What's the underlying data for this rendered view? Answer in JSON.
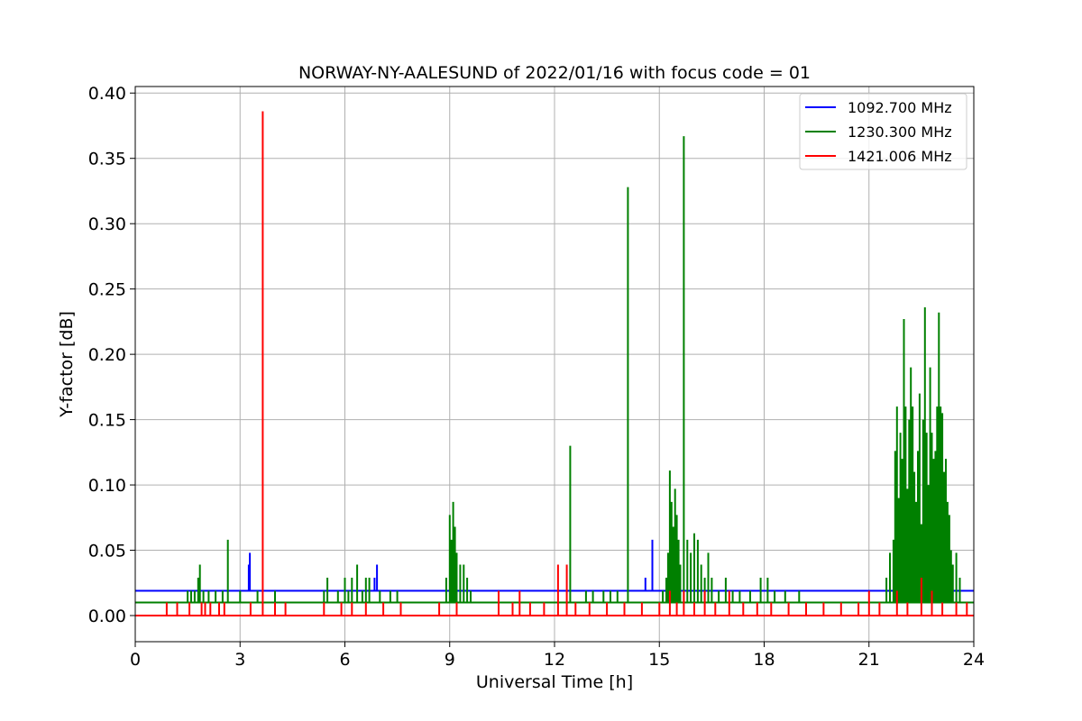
{
  "chart_data": {
    "type": "line",
    "title": "NORWAY-NY-AALESUND of 2022/01/16 with focus code = 01",
    "xlabel": "Universal Time [h]",
    "ylabel": "Y-factor [dB]",
    "xlim": [
      0,
      24
    ],
    "ylim": [
      -0.02,
      0.405
    ],
    "xticks": [
      0,
      3,
      6,
      9,
      12,
      15,
      18,
      21,
      24
    ],
    "xtick_labels": [
      "0",
      "3",
      "6",
      "9",
      "12",
      "15",
      "18",
      "21",
      "24"
    ],
    "yticks": [
      0.0,
      0.05,
      0.1,
      0.15,
      0.2,
      0.25,
      0.3,
      0.35,
      0.4
    ],
    "ytick_labels": [
      "0.00",
      "0.05",
      "0.10",
      "0.15",
      "0.20",
      "0.25",
      "0.30",
      "0.35",
      "0.40"
    ],
    "grid": true,
    "legend_position": "top-right",
    "series": [
      {
        "name": "1092.700 MHz",
        "color": "#0000ff",
        "baseline": 0.019,
        "spikes": [
          [
            3.25,
            0.039
          ],
          [
            3.28,
            0.048
          ],
          [
            6.85,
            0.029
          ],
          [
            6.92,
            0.039
          ],
          [
            12.0,
            0.019
          ],
          [
            14.6,
            0.029
          ],
          [
            14.8,
            0.058
          ]
        ]
      },
      {
        "name": "1230.300 MHz",
        "color": "#008000",
        "baseline": 0.01,
        "spikes": [
          [
            1.5,
            0.019
          ],
          [
            1.6,
            0.019
          ],
          [
            1.7,
            0.019
          ],
          [
            1.8,
            0.029
          ],
          [
            1.85,
            0.039
          ],
          [
            1.95,
            0.019
          ],
          [
            2.1,
            0.019
          ],
          [
            2.3,
            0.019
          ],
          [
            2.5,
            0.019
          ],
          [
            2.65,
            0.058
          ],
          [
            3.0,
            0.019
          ],
          [
            3.5,
            0.019
          ],
          [
            4.0,
            0.019
          ],
          [
            5.4,
            0.019
          ],
          [
            5.5,
            0.029
          ],
          [
            5.8,
            0.019
          ],
          [
            6.0,
            0.029
          ],
          [
            6.1,
            0.019
          ],
          [
            6.2,
            0.029
          ],
          [
            6.35,
            0.039
          ],
          [
            6.5,
            0.019
          ],
          [
            6.6,
            0.029
          ],
          [
            6.7,
            0.029
          ],
          [
            7.0,
            0.019
          ],
          [
            7.3,
            0.019
          ],
          [
            7.5,
            0.019
          ],
          [
            8.9,
            0.029
          ],
          [
            9.0,
            0.077
          ],
          [
            9.05,
            0.058
          ],
          [
            9.1,
            0.087
          ],
          [
            9.15,
            0.068
          ],
          [
            9.2,
            0.048
          ],
          [
            9.3,
            0.039
          ],
          [
            9.4,
            0.039
          ],
          [
            9.5,
            0.029
          ],
          [
            9.6,
            0.019
          ],
          [
            12.45,
            0.13
          ],
          [
            12.9,
            0.019
          ],
          [
            13.1,
            0.019
          ],
          [
            13.4,
            0.019
          ],
          [
            13.6,
            0.019
          ],
          [
            13.8,
            0.019
          ],
          [
            14.1,
            0.328
          ],
          [
            15.1,
            0.019
          ],
          [
            15.2,
            0.029
          ],
          [
            15.25,
            0.048
          ],
          [
            15.3,
            0.111
          ],
          [
            15.35,
            0.087
          ],
          [
            15.4,
            0.068
          ],
          [
            15.45,
            0.097
          ],
          [
            15.5,
            0.077
          ],
          [
            15.55,
            0.058
          ],
          [
            15.6,
            0.039
          ],
          [
            15.7,
            0.367
          ],
          [
            15.8,
            0.058
          ],
          [
            15.9,
            0.048
          ],
          [
            16.0,
            0.063
          ],
          [
            16.1,
            0.058
          ],
          [
            16.2,
            0.039
          ],
          [
            16.3,
            0.029
          ],
          [
            16.4,
            0.048
          ],
          [
            16.5,
            0.029
          ],
          [
            16.7,
            0.019
          ],
          [
            16.9,
            0.029
          ],
          [
            17.1,
            0.019
          ],
          [
            17.3,
            0.019
          ],
          [
            17.6,
            0.019
          ],
          [
            17.9,
            0.029
          ],
          [
            18.1,
            0.029
          ],
          [
            18.3,
            0.019
          ],
          [
            18.6,
            0.019
          ],
          [
            19.0,
            0.019
          ],
          [
            21.5,
            0.029
          ],
          [
            21.6,
            0.048
          ],
          [
            21.7,
            0.058
          ],
          [
            21.75,
            0.126
          ],
          [
            21.8,
            0.16
          ],
          [
            21.85,
            0.09
          ],
          [
            21.9,
            0.14
          ],
          [
            21.95,
            0.12
          ],
          [
            22.0,
            0.227
          ],
          [
            22.05,
            0.16
          ],
          [
            22.1,
            0.097
          ],
          [
            22.15,
            0.15
          ],
          [
            22.2,
            0.19
          ],
          [
            22.25,
            0.16
          ],
          [
            22.3,
            0.11
          ],
          [
            22.35,
            0.087
          ],
          [
            22.4,
            0.126
          ],
          [
            22.45,
            0.17
          ],
          [
            22.5,
            0.07
          ],
          [
            22.55,
            0.15
          ],
          [
            22.6,
            0.236
          ],
          [
            22.65,
            0.14
          ],
          [
            22.7,
            0.1
          ],
          [
            22.75,
            0.19
          ],
          [
            22.8,
            0.14
          ],
          [
            22.85,
            0.12
          ],
          [
            22.9,
            0.126
          ],
          [
            22.95,
            0.16
          ],
          [
            23.0,
            0.232
          ],
          [
            23.05,
            0.16
          ],
          [
            23.1,
            0.155
          ],
          [
            23.15,
            0.11
          ],
          [
            23.2,
            0.12
          ],
          [
            23.25,
            0.087
          ],
          [
            23.3,
            0.077
          ],
          [
            23.35,
            0.05
          ],
          [
            23.4,
            0.039
          ],
          [
            23.5,
            0.048
          ],
          [
            23.6,
            0.029
          ]
        ]
      },
      {
        "name": "1421.006 MHz",
        "color": "#ff0000",
        "baseline": 0.0,
        "spikes": [
          [
            0.9,
            0.01
          ],
          [
            1.2,
            0.01
          ],
          [
            1.55,
            0.01
          ],
          [
            1.9,
            0.01
          ],
          [
            2.0,
            0.01
          ],
          [
            2.15,
            0.01
          ],
          [
            2.4,
            0.01
          ],
          [
            2.55,
            0.01
          ],
          [
            3.3,
            0.01
          ],
          [
            3.65,
            0.386
          ],
          [
            4.0,
            0.01
          ],
          [
            4.3,
            0.01
          ],
          [
            5.4,
            0.01
          ],
          [
            5.9,
            0.01
          ],
          [
            6.2,
            0.01
          ],
          [
            6.6,
            0.01
          ],
          [
            7.1,
            0.01
          ],
          [
            7.6,
            0.01
          ],
          [
            8.7,
            0.01
          ],
          [
            9.2,
            0.01
          ],
          [
            10.4,
            0.019
          ],
          [
            10.8,
            0.01
          ],
          [
            11.0,
            0.019
          ],
          [
            11.3,
            0.01
          ],
          [
            11.7,
            0.01
          ],
          [
            12.1,
            0.039
          ],
          [
            12.35,
            0.039
          ],
          [
            12.6,
            0.01
          ],
          [
            13.0,
            0.01
          ],
          [
            13.5,
            0.01
          ],
          [
            14.0,
            0.01
          ],
          [
            14.5,
            0.01
          ],
          [
            15.0,
            0.01
          ],
          [
            15.3,
            0.019
          ],
          [
            15.5,
            0.01
          ],
          [
            15.7,
            0.019
          ],
          [
            16.0,
            0.01
          ],
          [
            16.3,
            0.019
          ],
          [
            16.6,
            0.01
          ],
          [
            17.0,
            0.019
          ],
          [
            17.4,
            0.01
          ],
          [
            17.8,
            0.01
          ],
          [
            18.2,
            0.01
          ],
          [
            18.7,
            0.01
          ],
          [
            19.2,
            0.01
          ],
          [
            19.7,
            0.01
          ],
          [
            20.2,
            0.01
          ],
          [
            20.7,
            0.01
          ],
          [
            21.0,
            0.019
          ],
          [
            21.3,
            0.01
          ],
          [
            21.8,
            0.019
          ],
          [
            22.1,
            0.01
          ],
          [
            22.5,
            0.029
          ],
          [
            22.8,
            0.019
          ],
          [
            23.1,
            0.01
          ],
          [
            23.5,
            0.01
          ],
          [
            23.8,
            0.01
          ]
        ]
      }
    ]
  }
}
